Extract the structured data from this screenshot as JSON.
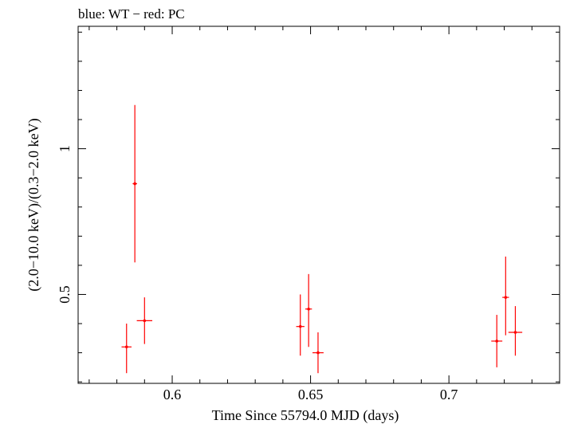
{
  "chart_data": {
    "type": "scatter",
    "title": "blue: WT − red: PC",
    "xlabel": "Time Since 55794.0 MJD (days)",
    "ylabel": "(2.0−10.0 keV)/(0.3−2.0 keV)",
    "xlim": [
      0.566,
      0.74
    ],
    "ylim": [
      0.195,
      1.42
    ],
    "x_ticks": [
      {
        "value": 0.6,
        "label": "0.6"
      },
      {
        "value": 0.65,
        "label": "0.65"
      },
      {
        "value": 0.7,
        "label": "0.7"
      }
    ],
    "y_ticks": [
      {
        "value": 0.5,
        "label": "0.5"
      },
      {
        "value": 1.0,
        "label": "1"
      }
    ],
    "x_minor_step": 0.01,
    "y_minor_step": 0.1,
    "grid": false,
    "legend": "none",
    "series": [
      {
        "name": "PC",
        "color": "#ff0000",
        "points": [
          {
            "x": 0.5835,
            "y": 0.32,
            "x_err": 0.0018,
            "y_low": 0.23,
            "y_high": 0.4
          },
          {
            "x": 0.5865,
            "y": 0.88,
            "x_err": 0.0008,
            "y_low": 0.61,
            "y_high": 1.15
          },
          {
            "x": 0.59,
            "y": 0.41,
            "x_err": 0.0028,
            "y_low": 0.33,
            "y_high": 0.49
          },
          {
            "x": 0.6463,
            "y": 0.39,
            "x_err": 0.0015,
            "y_low": 0.29,
            "y_high": 0.5
          },
          {
            "x": 0.6493,
            "y": 0.45,
            "x_err": 0.0012,
            "y_low": 0.32,
            "y_high": 0.57
          },
          {
            "x": 0.6527,
            "y": 0.3,
            "x_err": 0.002,
            "y_low": 0.23,
            "y_high": 0.37
          },
          {
            "x": 0.7173,
            "y": 0.34,
            "x_err": 0.002,
            "y_low": 0.25,
            "y_high": 0.43
          },
          {
            "x": 0.7205,
            "y": 0.49,
            "x_err": 0.0012,
            "y_low": 0.36,
            "y_high": 0.63
          },
          {
            "x": 0.724,
            "y": 0.37,
            "x_err": 0.0025,
            "y_low": 0.29,
            "y_high": 0.46
          }
        ]
      }
    ]
  }
}
